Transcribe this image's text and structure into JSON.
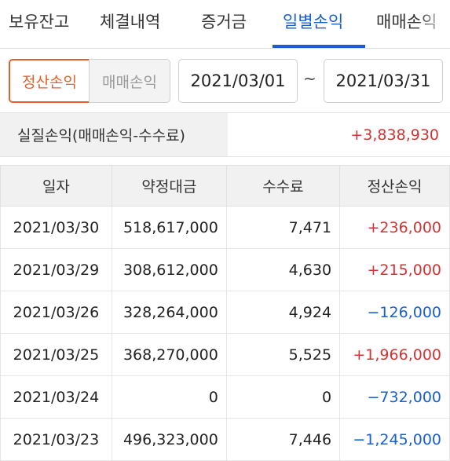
{
  "tabs": [
    "보유잔고",
    "체결내역",
    "증거금",
    "일별손익",
    "매매손익"
  ],
  "active_tab": "일별손익",
  "segment": {
    "settlement": "정산손익",
    "trading": "매매손익"
  },
  "dates": {
    "from": "2021/03/01",
    "to": "2021/03/31",
    "separator": "~"
  },
  "summary": {
    "label": "실질손익(매매손익-수수료)",
    "value": "+3,838,930"
  },
  "table": {
    "headers": [
      "일자",
      "약정대금",
      "수수료",
      "정산손익"
    ],
    "rows": [
      {
        "date": "2021/03/30",
        "amount": "518,617,000",
        "fee": "7,471",
        "pnl": "+236,000",
        "sign": "pos"
      },
      {
        "date": "2021/03/29",
        "amount": "308,612,000",
        "fee": "4,630",
        "pnl": "+215,000",
        "sign": "pos"
      },
      {
        "date": "2021/03/26",
        "amount": "328,264,000",
        "fee": "4,924",
        "pnl": "−126,000",
        "sign": "neg"
      },
      {
        "date": "2021/03/25",
        "amount": "368,270,000",
        "fee": "5,525",
        "pnl": "+1,966,000",
        "sign": "pos"
      },
      {
        "date": "2021/03/24",
        "amount": "0",
        "fee": "0",
        "pnl": "−732,000",
        "sign": "neg"
      },
      {
        "date": "2021/03/23",
        "amount": "496,323,000",
        "fee": "7,446",
        "pnl": "−1,245,000",
        "sign": "neg"
      }
    ]
  },
  "colors": {
    "accent": "#1a5fd1",
    "segment_active": "#e0622b",
    "positive": "#d03434",
    "negative": "#1a5fd1"
  }
}
